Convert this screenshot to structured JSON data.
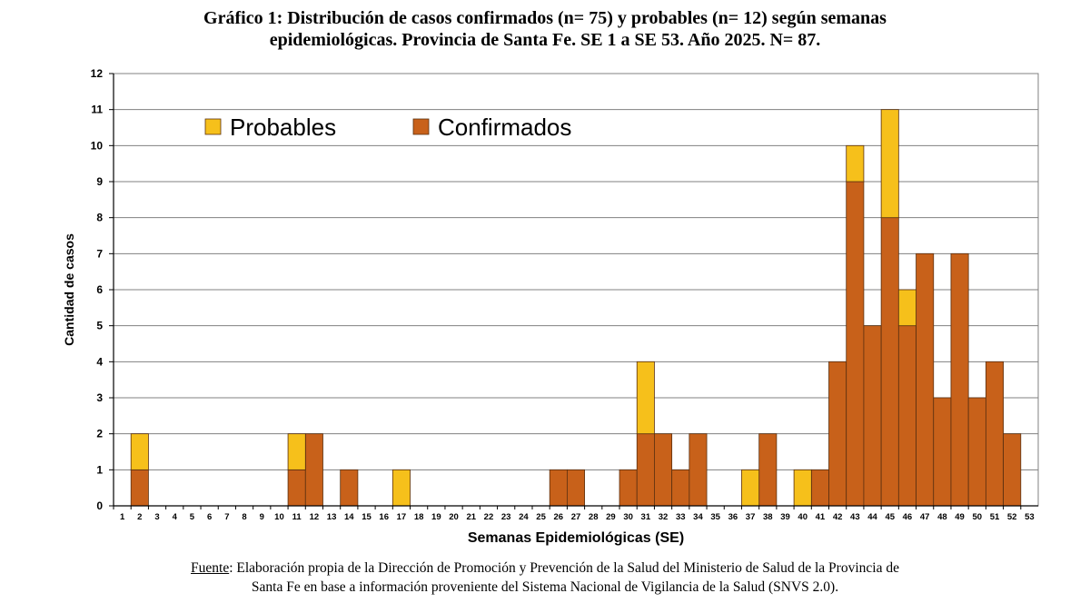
{
  "title_line1": "Gráfico 1: Distribución de casos confirmados (n= 75) y probables (n= 12) según semanas",
  "title_line2": "epidemiológicas. Provincia de Santa Fe. SE 1 a SE 53. Año 2025. N= 87.",
  "source": {
    "label": "Fuente",
    "line1": ": Elaboración propia de la Dirección de Promoción y Prevención de la Salud del Ministerio de Salud de la Provincia de",
    "line2": "Santa Fe en base a información proveniente del Sistema Nacional de Vigilancia de la Salud (SNVS 2.0)."
  },
  "chart_data": {
    "type": "bar",
    "stacked": true,
    "xlabel": "Semanas Epidemiológicas (SE)",
    "ylabel": "Cantidad de casos",
    "ylim": [
      0,
      12
    ],
    "yticks": [
      0,
      1,
      2,
      3,
      4,
      5,
      6,
      7,
      8,
      9,
      10,
      11,
      12
    ],
    "grid": true,
    "legend_position": "top-left",
    "categories": [
      "1",
      "2",
      "3",
      "4",
      "5",
      "6",
      "7",
      "8",
      "9",
      "10",
      "11",
      "12",
      "13",
      "14",
      "15",
      "16",
      "17",
      "18",
      "19",
      "20",
      "21",
      "22",
      "23",
      "24",
      "25",
      "26",
      "27",
      "28",
      "29",
      "30",
      "31",
      "32",
      "33",
      "34",
      "35",
      "36",
      "37",
      "38",
      "39",
      "40",
      "41",
      "42",
      "43",
      "44",
      "45",
      "46",
      "47",
      "48",
      "49",
      "50",
      "51",
      "52",
      "53"
    ],
    "series": [
      {
        "name": "Confirmados",
        "color": "#c8611a",
        "values": [
          0,
          1,
          0,
          0,
          0,
          0,
          0,
          0,
          0,
          0,
          1,
          2,
          0,
          1,
          0,
          0,
          0,
          0,
          0,
          0,
          0,
          0,
          0,
          0,
          0,
          1,
          1,
          0,
          0,
          1,
          2,
          2,
          1,
          2,
          0,
          0,
          0,
          2,
          0,
          0,
          1,
          4,
          9,
          5,
          8,
          5,
          7,
          3,
          7,
          3,
          4,
          2,
          0
        ]
      },
      {
        "name": "Probables",
        "color": "#f6c01b",
        "values": [
          0,
          1,
          0,
          0,
          0,
          0,
          0,
          0,
          0,
          0,
          1,
          0,
          0,
          0,
          0,
          0,
          1,
          0,
          0,
          0,
          0,
          0,
          0,
          0,
          0,
          0,
          0,
          0,
          0,
          0,
          2,
          0,
          0,
          0,
          0,
          0,
          1,
          0,
          0,
          1,
          0,
          0,
          1,
          0,
          3,
          1,
          0,
          0,
          0,
          0,
          0,
          0,
          0
        ]
      }
    ]
  }
}
